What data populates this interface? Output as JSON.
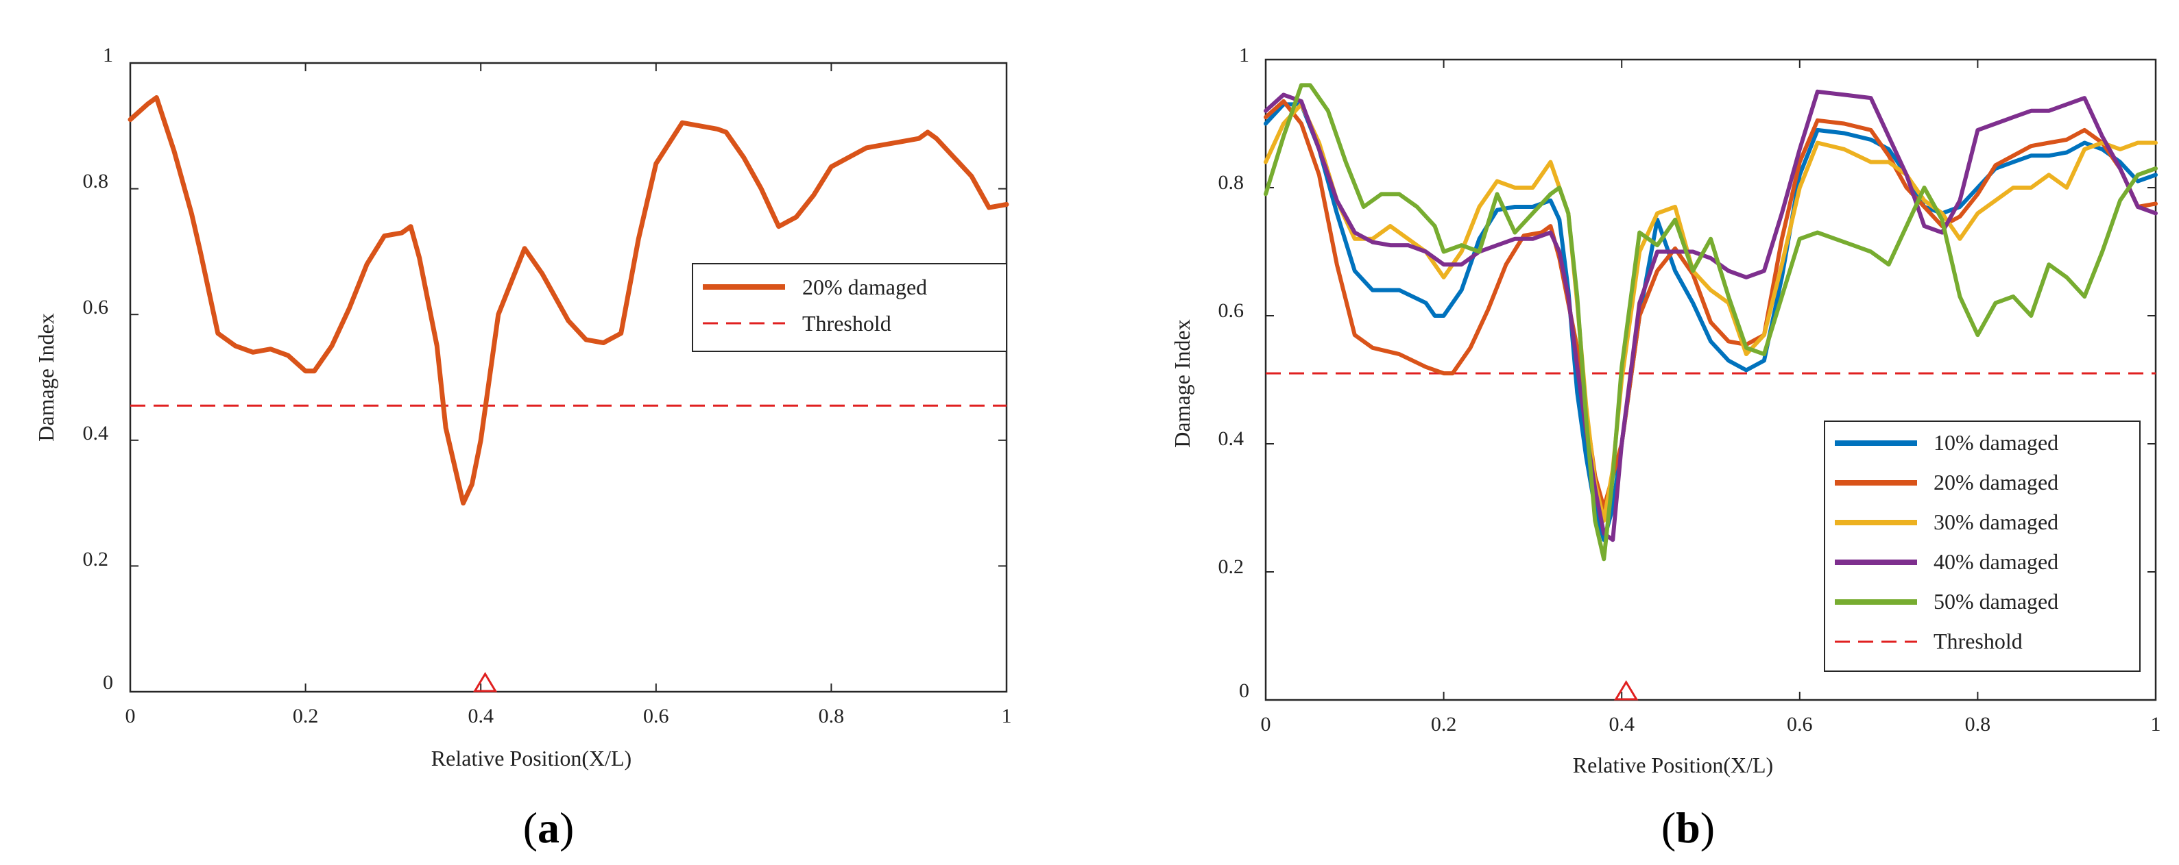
{
  "chart_data": [
    {
      "type": "line",
      "panel_label": "(a)",
      "panel_letter": "a",
      "xlabel": "Relative Position(X/L)",
      "ylabel": "Damage Index",
      "xlim": [
        0,
        1
      ],
      "ylim": [
        0,
        1
      ],
      "xticks": [
        "0",
        "0.2",
        "0.4",
        "0.6",
        "0.8",
        "1"
      ],
      "yticks": [
        "0",
        "0.2",
        "0.4",
        "0.6",
        "0.8",
        "1"
      ],
      "legend_position": "right",
      "damage_marker_x": 0.405,
      "threshold": {
        "name": "Threshold",
        "value": 0.455,
        "color": "#e02020"
      },
      "series": [
        {
          "name": "20% damaged",
          "color": "#d95319",
          "x": [
            0,
            0.02,
            0.03,
            0.05,
            0.07,
            0.08,
            0.1,
            0.12,
            0.14,
            0.16,
            0.18,
            0.2,
            0.21,
            0.23,
            0.25,
            0.27,
            0.29,
            0.31,
            0.32,
            0.33,
            0.35,
            0.36,
            0.38,
            0.39,
            0.4,
            0.41,
            0.42,
            0.44,
            0.45,
            0.47,
            0.5,
            0.52,
            0.54,
            0.56,
            0.58,
            0.6,
            0.63,
            0.65,
            0.67,
            0.68,
            0.7,
            0.72,
            0.73,
            0.74,
            0.76,
            0.78,
            0.8,
            0.82,
            0.84,
            0.86,
            0.88,
            0.9,
            0.91,
            0.92,
            0.94,
            0.96,
            0.98,
            1
          ],
          "values": [
            0.91,
            0.935,
            0.945,
            0.86,
            0.76,
            0.7,
            0.57,
            0.55,
            0.54,
            0.545,
            0.535,
            0.51,
            0.51,
            0.55,
            0.61,
            0.68,
            0.725,
            0.73,
            0.74,
            0.69,
            0.55,
            0.42,
            0.3,
            0.33,
            0.4,
            0.5,
            0.6,
            0.67,
            0.705,
            0.665,
            0.59,
            0.56,
            0.555,
            0.57,
            0.72,
            0.84,
            0.905,
            0.9,
            0.895,
            0.89,
            0.85,
            0.8,
            0.77,
            0.74,
            0.755,
            0.79,
            0.835,
            0.85,
            0.865,
            0.87,
            0.875,
            0.88,
            0.89,
            0.88,
            0.85,
            0.82,
            0.77,
            0.775
          ]
        }
      ]
    },
    {
      "type": "line",
      "panel_label": "(b)",
      "panel_letter": "b",
      "xlabel": "Relative Position(X/L)",
      "ylabel": "Damage Index",
      "xlim": [
        0,
        1
      ],
      "ylim": [
        0,
        1
      ],
      "xticks": [
        "0",
        "0.2",
        "0.4",
        "0.6",
        "0.8",
        "1"
      ],
      "yticks": [
        "0",
        "0.2",
        "0.4",
        "0.6",
        "0.8",
        "1"
      ],
      "legend_position": "bottom-right",
      "damage_marker_x": 0.405,
      "threshold": {
        "name": "Threshold",
        "value": 0.51,
        "color": "#e02020"
      },
      "series": [
        {
          "name": "10% damaged",
          "color": "#0072bd",
          "x": [
            0,
            0.02,
            0.04,
            0.06,
            0.08,
            0.1,
            0.12,
            0.15,
            0.18,
            0.19,
            0.2,
            0.22,
            0.24,
            0.26,
            0.28,
            0.3,
            0.32,
            0.33,
            0.34,
            0.35,
            0.36,
            0.37,
            0.38,
            0.39,
            0.4,
            0.42,
            0.44,
            0.46,
            0.48,
            0.5,
            0.52,
            0.54,
            0.56,
            0.58,
            0.6,
            0.62,
            0.65,
            0.68,
            0.7,
            0.72,
            0.74,
            0.76,
            0.78,
            0.8,
            0.82,
            0.84,
            0.86,
            0.88,
            0.9,
            0.92,
            0.94,
            0.96,
            0.98,
            1
          ],
          "values": [
            0.9,
            0.93,
            0.93,
            0.86,
            0.76,
            0.67,
            0.64,
            0.64,
            0.62,
            0.6,
            0.6,
            0.64,
            0.72,
            0.765,
            0.77,
            0.77,
            0.78,
            0.75,
            0.64,
            0.48,
            0.38,
            0.3,
            0.25,
            0.3,
            0.4,
            0.6,
            0.75,
            0.67,
            0.62,
            0.56,
            0.53,
            0.515,
            0.53,
            0.66,
            0.82,
            0.89,
            0.885,
            0.875,
            0.86,
            0.82,
            0.77,
            0.76,
            0.77,
            0.8,
            0.83,
            0.84,
            0.85,
            0.85,
            0.855,
            0.87,
            0.86,
            0.84,
            0.81,
            0.82
          ]
        },
        {
          "name": "20% damaged",
          "color": "#d95319",
          "x": [
            0,
            0.02,
            0.04,
            0.06,
            0.08,
            0.1,
            0.12,
            0.15,
            0.18,
            0.2,
            0.21,
            0.23,
            0.25,
            0.27,
            0.29,
            0.31,
            0.32,
            0.33,
            0.35,
            0.37,
            0.38,
            0.4,
            0.41,
            0.42,
            0.44,
            0.46,
            0.48,
            0.5,
            0.52,
            0.54,
            0.56,
            0.58,
            0.6,
            0.62,
            0.65,
            0.68,
            0.7,
            0.72,
            0.74,
            0.76,
            0.78,
            0.8,
            0.82,
            0.84,
            0.86,
            0.88,
            0.9,
            0.92,
            0.94,
            0.96,
            0.98,
            1
          ],
          "values": [
            0.91,
            0.935,
            0.9,
            0.82,
            0.68,
            0.57,
            0.55,
            0.54,
            0.52,
            0.51,
            0.51,
            0.55,
            0.61,
            0.68,
            0.725,
            0.73,
            0.74,
            0.69,
            0.55,
            0.35,
            0.3,
            0.4,
            0.5,
            0.6,
            0.67,
            0.705,
            0.665,
            0.59,
            0.56,
            0.555,
            0.57,
            0.72,
            0.84,
            0.905,
            0.9,
            0.89,
            0.85,
            0.8,
            0.77,
            0.74,
            0.755,
            0.79,
            0.835,
            0.85,
            0.865,
            0.87,
            0.875,
            0.89,
            0.87,
            0.83,
            0.77,
            0.775
          ]
        },
        {
          "name": "30% damaged",
          "color": "#edb120",
          "x": [
            0,
            0.02,
            0.04,
            0.06,
            0.08,
            0.1,
            0.12,
            0.14,
            0.16,
            0.18,
            0.2,
            0.22,
            0.24,
            0.26,
            0.28,
            0.3,
            0.32,
            0.34,
            0.35,
            0.36,
            0.37,
            0.38,
            0.39,
            0.4,
            0.42,
            0.44,
            0.46,
            0.48,
            0.5,
            0.52,
            0.54,
            0.56,
            0.58,
            0.6,
            0.62,
            0.65,
            0.68,
            0.7,
            0.72,
            0.74,
            0.76,
            0.78,
            0.8,
            0.82,
            0.84,
            0.86,
            0.88,
            0.9,
            0.92,
            0.94,
            0.96,
            0.98,
            1
          ],
          "values": [
            0.84,
            0.9,
            0.93,
            0.87,
            0.78,
            0.72,
            0.72,
            0.74,
            0.72,
            0.7,
            0.66,
            0.7,
            0.77,
            0.81,
            0.8,
            0.8,
            0.84,
            0.76,
            0.62,
            0.46,
            0.34,
            0.28,
            0.36,
            0.5,
            0.7,
            0.76,
            0.77,
            0.67,
            0.64,
            0.62,
            0.54,
            0.57,
            0.68,
            0.8,
            0.87,
            0.86,
            0.84,
            0.84,
            0.82,
            0.78,
            0.76,
            0.72,
            0.76,
            0.78,
            0.8,
            0.8,
            0.82,
            0.8,
            0.86,
            0.87,
            0.86,
            0.87,
            0.87
          ]
        },
        {
          "name": "40% damaged",
          "color": "#7e2f8e",
          "x": [
            0,
            0.02,
            0.04,
            0.06,
            0.08,
            0.1,
            0.12,
            0.14,
            0.16,
            0.18,
            0.2,
            0.22,
            0.24,
            0.26,
            0.28,
            0.3,
            0.32,
            0.33,
            0.34,
            0.35,
            0.36,
            0.37,
            0.38,
            0.39,
            0.4,
            0.42,
            0.44,
            0.46,
            0.48,
            0.5,
            0.52,
            0.54,
            0.56,
            0.58,
            0.6,
            0.62,
            0.65,
            0.68,
            0.7,
            0.72,
            0.74,
            0.76,
            0.78,
            0.8,
            0.82,
            0.84,
            0.86,
            0.88,
            0.9,
            0.92,
            0.94,
            0.96,
            0.98,
            1
          ],
          "values": [
            0.92,
            0.945,
            0.935,
            0.86,
            0.78,
            0.73,
            0.715,
            0.71,
            0.71,
            0.7,
            0.68,
            0.68,
            0.7,
            0.71,
            0.72,
            0.72,
            0.73,
            0.7,
            0.63,
            0.52,
            0.42,
            0.33,
            0.26,
            0.25,
            0.4,
            0.62,
            0.7,
            0.7,
            0.7,
            0.69,
            0.67,
            0.66,
            0.67,
            0.76,
            0.86,
            0.95,
            0.945,
            0.94,
            0.88,
            0.82,
            0.74,
            0.73,
            0.78,
            0.89,
            0.9,
            0.91,
            0.92,
            0.92,
            0.93,
            0.94,
            0.88,
            0.83,
            0.77,
            0.76
          ]
        },
        {
          "name": "50% damaged",
          "color": "#77ac30",
          "x": [
            0,
            0.02,
            0.04,
            0.05,
            0.07,
            0.09,
            0.11,
            0.13,
            0.15,
            0.17,
            0.19,
            0.2,
            0.22,
            0.24,
            0.26,
            0.28,
            0.3,
            0.32,
            0.33,
            0.34,
            0.35,
            0.36,
            0.37,
            0.38,
            0.39,
            0.4,
            0.42,
            0.44,
            0.46,
            0.48,
            0.5,
            0.52,
            0.54,
            0.56,
            0.58,
            0.6,
            0.62,
            0.64,
            0.66,
            0.68,
            0.7,
            0.72,
            0.74,
            0.76,
            0.78,
            0.8,
            0.82,
            0.84,
            0.86,
            0.88,
            0.9,
            0.92,
            0.94,
            0.96,
            0.98,
            1
          ],
          "values": [
            0.79,
            0.88,
            0.96,
            0.96,
            0.92,
            0.84,
            0.77,
            0.79,
            0.79,
            0.77,
            0.74,
            0.7,
            0.71,
            0.7,
            0.79,
            0.73,
            0.76,
            0.79,
            0.8,
            0.76,
            0.63,
            0.44,
            0.28,
            0.22,
            0.35,
            0.52,
            0.73,
            0.71,
            0.75,
            0.67,
            0.72,
            0.63,
            0.55,
            0.54,
            0.63,
            0.72,
            0.73,
            0.72,
            0.71,
            0.7,
            0.68,
            0.74,
            0.8,
            0.75,
            0.63,
            0.57,
            0.62,
            0.63,
            0.6,
            0.68,
            0.66,
            0.63,
            0.7,
            0.78,
            0.82,
            0.83
          ]
        }
      ]
    }
  ]
}
